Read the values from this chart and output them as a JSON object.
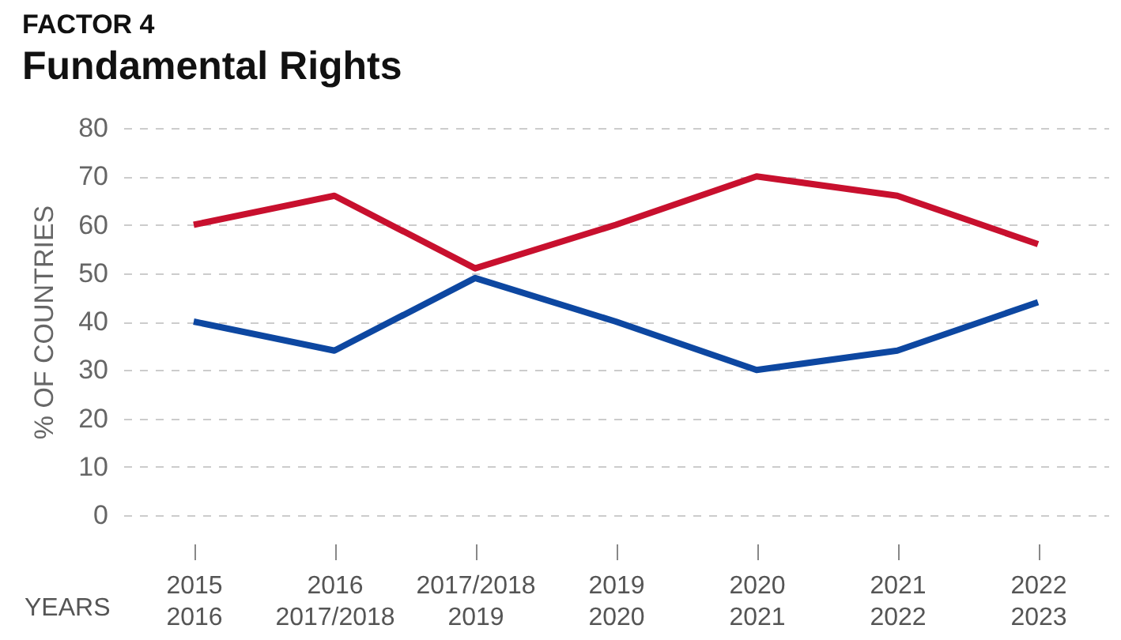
{
  "chart_data": {
    "type": "line",
    "title": "Fundamental Rights",
    "subtitle": "FACTOR 4",
    "xlabel": "YEARS",
    "ylabel": "% OF COUNTRIES",
    "categories": [
      "2015\n2016",
      "2016\n2017/2018",
      "2017/2018\n2019",
      "2019\n2020",
      "2020\n2021",
      "2021\n2022",
      "2022\n2023"
    ],
    "series": [
      {
        "color": "#c8102e",
        "values": [
          60,
          66,
          51,
          60,
          70,
          66,
          56
        ]
      },
      {
        "color": "#0d47a1",
        "values": [
          40,
          34,
          49,
          40,
          30,
          34,
          44
        ]
      }
    ],
    "ylim": [
      0,
      80
    ],
    "yticks": [
      0,
      10,
      20,
      30,
      40,
      50,
      60,
      70,
      80
    ],
    "grid": "y"
  }
}
